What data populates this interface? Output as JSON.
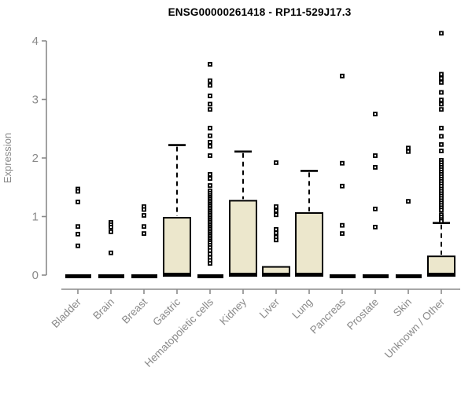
{
  "chart": {
    "background": "#ffffff"
  },
  "chart_data": {
    "type": "boxplot",
    "title": "ENSG00000261418 - RP11-529J17.3",
    "xlabel": "",
    "ylabel": "Expression",
    "ylim": [
      0,
      4
    ],
    "yticks": [
      0,
      1,
      2,
      3,
      4
    ],
    "grid": false,
    "legend": "none",
    "colors": {
      "box_fill": "#ECE7CC",
      "box_stroke": "#000000",
      "median": "#000000",
      "axis": "#8a8a8a",
      "tick_label": "#8a8a8a",
      "title": "#000000"
    },
    "categories": [
      "Bladder",
      "Brain",
      "Breast",
      "Gastric",
      "Hematopoietic cells",
      "Kidney",
      "Liver",
      "Lung",
      "Pancreas",
      "Prostate",
      "Skin",
      "Unknown / Other"
    ],
    "series": [
      {
        "label": "Bladder",
        "q1": 0,
        "median": 0,
        "q3": 0,
        "whisker_high": null,
        "outliers": [
          1.47,
          1.43,
          1.25,
          0.83,
          0.7,
          0.5
        ]
      },
      {
        "label": "Brain",
        "q1": 0,
        "median": 0,
        "q3": 0,
        "whisker_high": null,
        "outliers": [
          0.9,
          0.86,
          0.82,
          0.74,
          0.38
        ]
      },
      {
        "label": "Breast",
        "q1": 0,
        "median": 0,
        "q3": 0,
        "whisker_high": null,
        "outliers": [
          1.17,
          1.12,
          1.02,
          0.83,
          0.71
        ]
      },
      {
        "label": "Gastric",
        "q1": 0,
        "median": 0,
        "q3": 0.98,
        "whisker_high": 2.22,
        "outliers": []
      },
      {
        "label": "Hematopoietic cells",
        "q1": 0,
        "median": 0,
        "q3": 0,
        "whisker_high": null,
        "outliers": [
          3.6,
          3.32,
          3.24,
          3.06,
          2.92,
          2.83,
          2.51,
          2.38,
          2.27,
          2.2,
          2.04,
          1.72,
          1.65,
          1.53,
          1.44,
          1.4,
          1.36,
          1.33,
          1.3,
          1.27,
          1.24,
          1.21,
          1.18,
          1.15,
          1.12,
          1.09,
          1.06,
          1.03,
          1.0,
          0.97,
          0.94,
          0.91,
          0.88,
          0.85,
          0.82,
          0.79,
          0.76,
          0.73,
          0.7,
          0.67,
          0.64,
          0.61,
          0.58,
          0.55,
          0.51,
          0.47,
          0.42,
          0.36,
          0.3,
          0.25,
          0.2
        ]
      },
      {
        "label": "Kidney",
        "q1": 0,
        "median": 0,
        "q3": 1.27,
        "whisker_high": 2.11,
        "outliers": []
      },
      {
        "label": "Liver",
        "q1": 0,
        "median": 0,
        "q3": 0.14,
        "whisker_high": null,
        "outliers": [
          1.92,
          1.17,
          1.1,
          1.03,
          0.78,
          0.72,
          0.65,
          0.6
        ]
      },
      {
        "label": "Lung",
        "q1": 0,
        "median": 0,
        "q3": 1.06,
        "whisker_high": 1.78,
        "outliers": []
      },
      {
        "label": "Pancreas",
        "q1": 0,
        "median": 0,
        "q3": 0,
        "whisker_high": null,
        "outliers": [
          3.4,
          1.91,
          1.52,
          0.85,
          0.71
        ]
      },
      {
        "label": "Prostate",
        "q1": 0,
        "median": 0,
        "q3": 0,
        "whisker_high": null,
        "outliers": [
          2.75,
          2.04,
          1.84,
          1.13,
          0.82
        ]
      },
      {
        "label": "Skin",
        "q1": 0,
        "median": 0,
        "q3": 0,
        "whisker_high": null,
        "outliers": [
          2.17,
          2.11,
          1.26
        ]
      },
      {
        "label": "Unknown / Other",
        "q1": 0,
        "median": 0,
        "q3": 0.32,
        "whisker_high": 0.89,
        "outliers": [
          4.13,
          3.43,
          3.36,
          3.29,
          3.12,
          2.99,
          2.92,
          2.83,
          2.51,
          2.37,
          2.23,
          2.12,
          1.96,
          1.92,
          1.88,
          1.84,
          1.8,
          1.76,
          1.72,
          1.68,
          1.64,
          1.6,
          1.56,
          1.52,
          1.47,
          1.43,
          1.39,
          1.35,
          1.31,
          1.27,
          1.23,
          1.19,
          1.15,
          1.11,
          1.03,
          0.99,
          0.95,
          0.92
        ]
      }
    ]
  }
}
